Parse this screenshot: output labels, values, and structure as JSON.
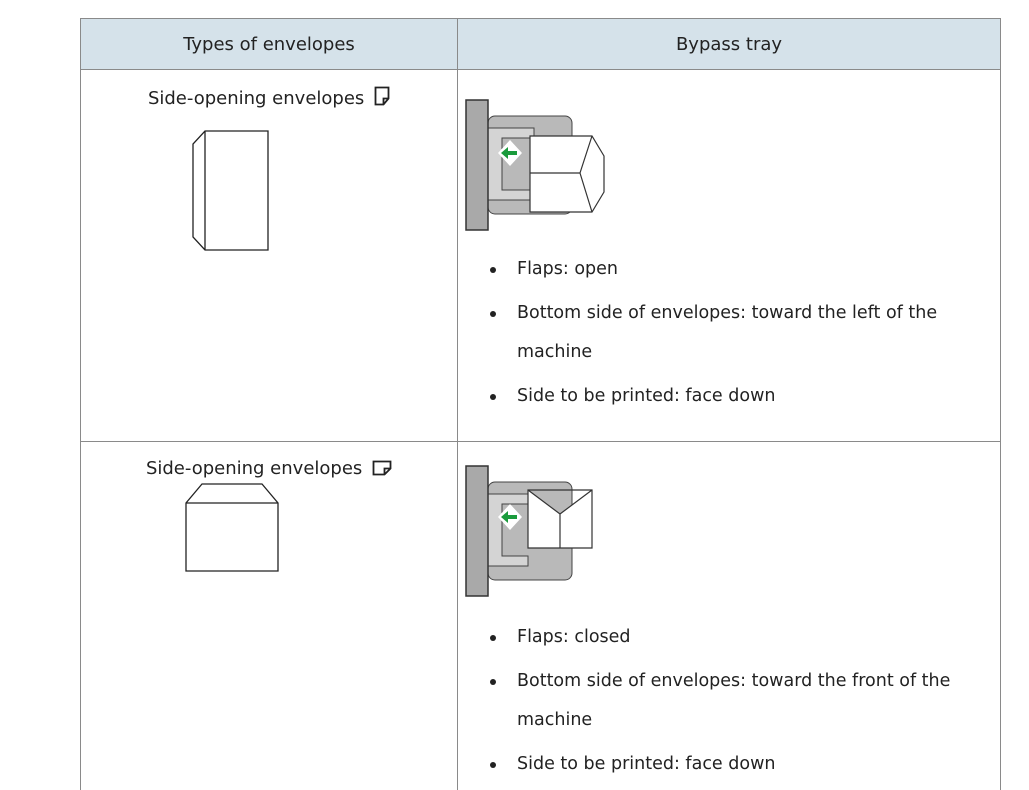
{
  "table": {
    "header": [
      "Types of envelopes",
      "Bypass tray"
    ],
    "rows": [
      {
        "type": "Side-opening envelopes",
        "bullets": [
          "Flaps: open",
          "Bottom side of envelopes: toward the left of the machine",
          "Side to be printed: face down"
        ]
      },
      {
        "type": "Side-opening envelopes",
        "bullets": [
          "Flaps: closed",
          "Bottom side of envelopes: toward the front of the machine",
          "Side to be printed: face down"
        ]
      }
    ]
  }
}
